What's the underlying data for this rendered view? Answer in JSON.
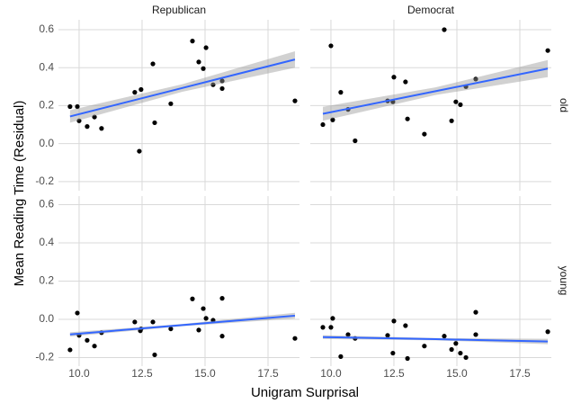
{
  "xlabel": "Unigram Surprisal",
  "ylabel": "Mean Reading Time (Residual)",
  "columns": [
    "Republican",
    "Democrat"
  ],
  "rows": [
    "old",
    "young"
  ],
  "chart_data": [
    {
      "type": "scatter",
      "color": "#000000",
      "fit_color": "#3366ff",
      "band_color": "#999999",
      "xlim": [
        9.18,
        18.75
      ],
      "ylim": [
        -0.248,
        0.652
      ],
      "xticks": [
        {
          "value": 10,
          "label": "10.0"
        },
        {
          "value": 12.5,
          "label": "12.5"
        },
        {
          "value": 15,
          "label": "15.0"
        },
        {
          "value": 17.5,
          "label": "17.5"
        }
      ],
      "yticks": [
        {
          "value": -0.2,
          "label": "-0.2"
        },
        {
          "value": 0,
          "label": "0.0"
        },
        0.2,
        0.4,
        0.6
      ],
      "x": [
        9.64,
        9.93,
        10.0,
        10.32,
        10.61,
        10.89,
        12.21,
        12.46,
        12.39,
        12.93,
        13.0,
        13.64,
        14.5,
        14.75,
        14.93,
        15.04,
        15.32,
        15.68,
        15.68,
        18.57
      ],
      "values": [
        0.195,
        0.195,
        0.12,
        0.09,
        0.14,
        0.08,
        0.27,
        0.285,
        -0.04,
        0.42,
        0.11,
        0.21,
        0.54,
        0.43,
        0.395,
        0.505,
        0.31,
        0.33,
        0.29,
        0.225
      ],
      "fit": {
        "x": [
          9.64,
          14.1,
          18.57
        ],
        "values": [
          0.143,
          0.293,
          0.443
        ],
        "lower": [
          0.11,
          0.273,
          0.4
        ],
        "upper": [
          0.176,
          0.313,
          0.486
        ]
      }
    },
    {
      "type": "scatter",
      "color": "#000000",
      "fit_color": "#3366ff",
      "band_color": "#999999",
      "xlim": [
        9.18,
        18.75
      ],
      "ylim": [
        -0.248,
        0.652
      ],
      "xticks": [
        {
          "value": 10,
          "label": "10.0"
        },
        {
          "value": 12.5,
          "label": "12.5"
        },
        {
          "value": 15,
          "label": "15.0"
        },
        {
          "value": 17.5,
          "label": "17.5"
        }
      ],
      "yticks": [
        {
          "value": -0.2,
          "label": "-0.2"
        },
        {
          "value": 0,
          "label": "0.0"
        },
        0.2,
        0.4,
        0.6
      ],
      "x": [
        9.68,
        10.0,
        10.07,
        10.39,
        10.68,
        10.96,
        12.25,
        12.46,
        12.5,
        12.96,
        13.04,
        13.71,
        14.5,
        14.79,
        14.96,
        15.14,
        15.36,
        15.75,
        18.61
      ],
      "values": [
        0.1,
        0.515,
        0.125,
        0.27,
        0.18,
        0.015,
        0.225,
        0.22,
        0.35,
        0.325,
        0.13,
        0.05,
        0.6,
        0.12,
        0.22,
        0.205,
        0.3,
        0.34,
        0.49
      ],
      "fit": {
        "x": [
          9.68,
          14.15,
          18.61
        ],
        "values": [
          0.157,
          0.276,
          0.395
        ],
        "lower": [
          0.12,
          0.256,
          0.35
        ],
        "upper": [
          0.194,
          0.296,
          0.44
        ]
      }
    },
    {
      "type": "scatter",
      "color": "#000000",
      "fit_color": "#3366ff",
      "band_color": "#999999",
      "xlim": [
        9.18,
        18.75
      ],
      "ylim": [
        -0.245,
        0.645
      ],
      "xticks": [
        {
          "value": 10,
          "label": "10.0"
        },
        {
          "value": 12.5,
          "label": "12.5"
        },
        {
          "value": 15,
          "label": "15.0"
        },
        {
          "value": 17.5,
          "label": "17.5"
        }
      ],
      "yticks": [
        {
          "value": -0.2,
          "label": "-0.2"
        },
        {
          "value": 0,
          "label": "0.0"
        },
        0.2,
        0.4,
        0.6
      ],
      "x": [
        9.64,
        9.93,
        10.0,
        10.32,
        10.61,
        10.89,
        12.21,
        12.46,
        12.43,
        12.93,
        13.0,
        13.64,
        14.5,
        14.75,
        14.93,
        15.04,
        15.32,
        15.68,
        15.68,
        18.57
      ],
      "values": [
        -0.16,
        0.033,
        -0.084,
        -0.11,
        -0.14,
        -0.07,
        -0.014,
        -0.05,
        -0.06,
        -0.014,
        -0.186,
        -0.05,
        0.107,
        -0.056,
        0.056,
        0.005,
        -0.005,
        0.11,
        -0.088,
        -0.1
      ],
      "fit": {
        "x": [
          9.64,
          14.1,
          18.57
        ],
        "values": [
          -0.079,
          -0.03,
          0.019
        ],
        "lower": [
          -0.09,
          -0.036,
          0.004
        ],
        "upper": [
          -0.068,
          -0.024,
          0.034
        ]
      }
    },
    {
      "type": "scatter",
      "color": "#000000",
      "fit_color": "#3366ff",
      "band_color": "#999999",
      "xlim": [
        9.18,
        18.75
      ],
      "ylim": [
        -0.245,
        0.645
      ],
      "xticks": [
        {
          "value": 10,
          "label": "10.0"
        },
        {
          "value": 12.5,
          "label": "12.5"
        },
        {
          "value": 15,
          "label": "15.0"
        },
        {
          "value": 17.5,
          "label": "17.5"
        }
      ],
      "yticks": [
        {
          "value": -0.2,
          "label": "-0.2"
        },
        {
          "value": 0,
          "label": "0.0"
        },
        0.2,
        0.4,
        0.6
      ],
      "x": [
        9.68,
        10.0,
        10.07,
        10.39,
        10.68,
        10.96,
        12.25,
        12.46,
        12.5,
        12.96,
        13.04,
        13.71,
        14.5,
        14.79,
        14.96,
        15.14,
        15.36,
        15.75,
        15.75,
        18.61
      ],
      "values": [
        -0.042,
        -0.042,
        0.005,
        -0.195,
        -0.08,
        -0.1,
        -0.084,
        -0.177,
        -0.009,
        -0.033,
        -0.205,
        -0.14,
        -0.088,
        -0.158,
        -0.126,
        -0.177,
        -0.2,
        0.037,
        -0.08,
        -0.065
      ],
      "fit": {
        "x": [
          9.68,
          14.15,
          18.61
        ],
        "values": [
          -0.093,
          -0.104,
          -0.116
        ],
        "lower": [
          -0.103,
          -0.11,
          -0.13
        ],
        "upper": [
          -0.083,
          -0.098,
          -0.102
        ]
      }
    }
  ]
}
